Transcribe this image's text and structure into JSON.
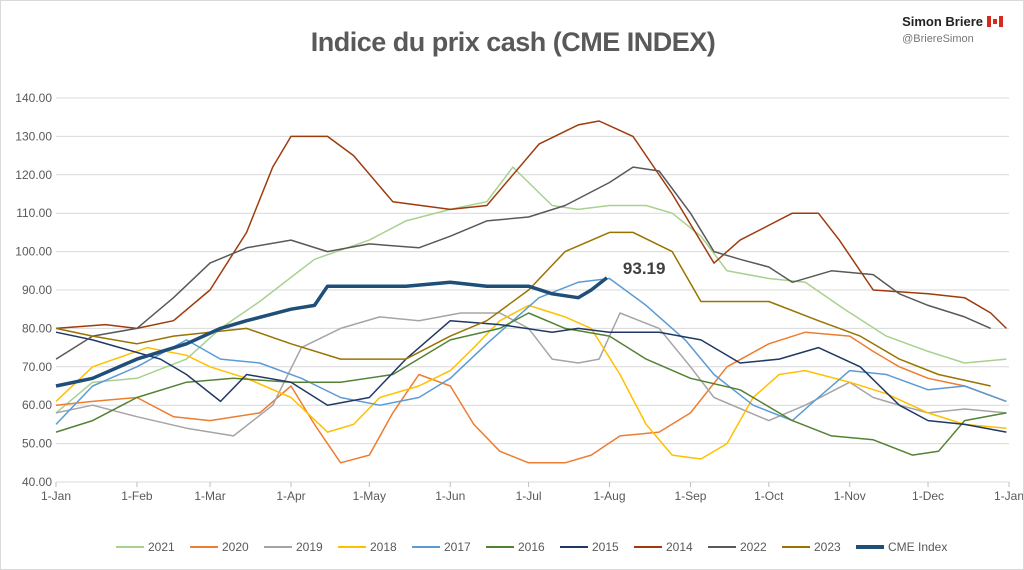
{
  "brand": {
    "name": "Simon Briere",
    "handle": "@BriereSimon",
    "flag_icon": "canada-flag-icon"
  },
  "chart_data": {
    "type": "line",
    "title": "Indice du prix cash (CME INDEX)",
    "xlabel": "",
    "ylabel": "",
    "ylim": [
      40,
      140
    ],
    "yticks": [
      "40.00",
      "50.00",
      "60.00",
      "70.00",
      "80.00",
      "90.00",
      "100.00",
      "110.00",
      "120.00",
      "130.00",
      "140.00"
    ],
    "xticks": [
      "1-Jan",
      "1-Feb",
      "1-Mar",
      "1-Apr",
      "1-May",
      "1-Jun",
      "1-Jul",
      "1-Aug",
      "1-Sep",
      "1-Oct",
      "1-Nov",
      "1-Dec",
      "1-Jan"
    ],
    "grid": "horizontal",
    "legend_position": "bottom",
    "annotation": "93.19",
    "series": [
      {
        "name": "2021",
        "color": "#A9D18E",
        "width": 1.5,
        "points": [
          [
            "01-01",
            58
          ],
          [
            "01-15",
            66
          ],
          [
            "02-01",
            67
          ],
          [
            "02-20",
            72
          ],
          [
            "03-05",
            80
          ],
          [
            "03-20",
            87
          ],
          [
            "04-10",
            98
          ],
          [
            "05-01",
            103
          ],
          [
            "05-15",
            108
          ],
          [
            "06-01",
            111
          ],
          [
            "06-15",
            113
          ],
          [
            "06-25",
            122
          ],
          [
            "07-10",
            112
          ],
          [
            "07-20",
            111
          ],
          [
            "08-01",
            112
          ],
          [
            "08-15",
            112
          ],
          [
            "08-25",
            110
          ],
          [
            "09-05",
            104
          ],
          [
            "09-15",
            95
          ],
          [
            "10-01",
            93
          ],
          [
            "10-15",
            92
          ],
          [
            "10-30",
            85
          ],
          [
            "11-15",
            78
          ],
          [
            "12-01",
            74
          ],
          [
            "12-15",
            71
          ],
          [
            "12-31",
            72
          ]
        ]
      },
      {
        "name": "2020",
        "color": "#ED7D31",
        "width": 1.5,
        "points": [
          [
            "01-01",
            60
          ],
          [
            "01-15",
            61
          ],
          [
            "02-01",
            62
          ],
          [
            "02-15",
            57
          ],
          [
            "03-01",
            56
          ],
          [
            "03-20",
            58
          ],
          [
            "04-01",
            65
          ],
          [
            "04-10",
            55
          ],
          [
            "04-20",
            45
          ],
          [
            "05-01",
            47
          ],
          [
            "05-10",
            58
          ],
          [
            "05-20",
            68
          ],
          [
            "06-01",
            65
          ],
          [
            "06-10",
            55
          ],
          [
            "06-20",
            48
          ],
          [
            "07-01",
            45
          ],
          [
            "07-15",
            45
          ],
          [
            "07-25",
            47
          ],
          [
            "08-05",
            52
          ],
          [
            "08-20",
            53
          ],
          [
            "09-01",
            58
          ],
          [
            "09-15",
            70
          ],
          [
            "10-01",
            76
          ],
          [
            "10-15",
            79
          ],
          [
            "11-01",
            78
          ],
          [
            "11-10",
            74
          ],
          [
            "11-20",
            70
          ],
          [
            "12-01",
            67
          ],
          [
            "12-15",
            65
          ],
          [
            "12-31",
            61
          ]
        ]
      },
      {
        "name": "2019",
        "color": "#A5A5A5",
        "width": 1.5,
        "points": [
          [
            "01-01",
            58
          ],
          [
            "01-15",
            60
          ],
          [
            "02-01",
            57
          ],
          [
            "02-20",
            54
          ],
          [
            "03-10",
            52
          ],
          [
            "03-25",
            60
          ],
          [
            "04-05",
            75
          ],
          [
            "04-20",
            80
          ],
          [
            "05-05",
            83
          ],
          [
            "05-20",
            82
          ],
          [
            "06-05",
            84
          ],
          [
            "06-20",
            84
          ],
          [
            "07-01",
            80
          ],
          [
            "07-10",
            72
          ],
          [
            "07-20",
            71
          ],
          [
            "07-28",
            72
          ],
          [
            "08-05",
            84
          ],
          [
            "08-20",
            80
          ],
          [
            "09-01",
            70
          ],
          [
            "09-10",
            62
          ],
          [
            "10-01",
            56
          ],
          [
            "10-15",
            60
          ],
          [
            "11-01",
            66
          ],
          [
            "11-10",
            62
          ],
          [
            "11-20",
            60
          ],
          [
            "12-01",
            58
          ],
          [
            "12-15",
            59
          ],
          [
            "12-31",
            58
          ]
        ]
      },
      {
        "name": "2018",
        "color": "#FFC000",
        "width": 1.5,
        "points": [
          [
            "01-01",
            61
          ],
          [
            "01-15",
            70
          ],
          [
            "02-05",
            75
          ],
          [
            "02-20",
            73
          ],
          [
            "03-01",
            70
          ],
          [
            "03-15",
            67
          ],
          [
            "04-01",
            62
          ],
          [
            "04-15",
            53
          ],
          [
            "04-25",
            55
          ],
          [
            "05-05",
            62
          ],
          [
            "05-20",
            65
          ],
          [
            "06-01",
            69
          ],
          [
            "06-10",
            75
          ],
          [
            "06-20",
            82
          ],
          [
            "07-01",
            86
          ],
          [
            "07-15",
            83
          ],
          [
            "07-25",
            80
          ],
          [
            "08-05",
            68
          ],
          [
            "08-15",
            55
          ],
          [
            "08-25",
            47
          ],
          [
            "09-05",
            46
          ],
          [
            "09-15",
            50
          ],
          [
            "09-25",
            62
          ],
          [
            "10-05",
            68
          ],
          [
            "10-15",
            69
          ],
          [
            "11-01",
            66
          ],
          [
            "11-15",
            63
          ],
          [
            "12-01",
            58
          ],
          [
            "12-15",
            55
          ],
          [
            "12-31",
            54
          ]
        ]
      },
      {
        "name": "2017",
        "color": "#5B9BD5",
        "width": 1.5,
        "points": [
          [
            "01-01",
            55
          ],
          [
            "01-15",
            65
          ],
          [
            "02-01",
            70
          ],
          [
            "02-20",
            77
          ],
          [
            "03-05",
            72
          ],
          [
            "03-20",
            71
          ],
          [
            "04-05",
            67
          ],
          [
            "04-20",
            62
          ],
          [
            "05-05",
            60
          ],
          [
            "05-20",
            62
          ],
          [
            "06-01",
            67
          ],
          [
            "06-15",
            76
          ],
          [
            "06-25",
            82
          ],
          [
            "07-05",
            88
          ],
          [
            "07-20",
            92
          ],
          [
            "08-01",
            93
          ],
          [
            "08-15",
            86
          ],
          [
            "08-30",
            77
          ],
          [
            "09-10",
            68
          ],
          [
            "09-25",
            60
          ],
          [
            "10-10",
            56
          ],
          [
            "10-20",
            62
          ],
          [
            "11-01",
            69
          ],
          [
            "11-15",
            68
          ],
          [
            "12-01",
            64
          ],
          [
            "12-15",
            65
          ],
          [
            "12-31",
            61
          ]
        ]
      },
      {
        "name": "2016",
        "color": "#548235",
        "width": 1.5,
        "points": [
          [
            "01-01",
            53
          ],
          [
            "01-15",
            56
          ],
          [
            "02-01",
            62
          ],
          [
            "02-20",
            66
          ],
          [
            "03-10",
            67
          ],
          [
            "04-01",
            66
          ],
          [
            "04-20",
            66
          ],
          [
            "05-10",
            68
          ],
          [
            "06-01",
            77
          ],
          [
            "06-20",
            80
          ],
          [
            "07-01",
            84
          ],
          [
            "07-15",
            80
          ],
          [
            "08-01",
            78
          ],
          [
            "08-15",
            72
          ],
          [
            "09-01",
            67
          ],
          [
            "09-20",
            64
          ],
          [
            "10-10",
            56
          ],
          [
            "10-25",
            52
          ],
          [
            "11-10",
            51
          ],
          [
            "11-25",
            47
          ],
          [
            "12-05",
            48
          ],
          [
            "12-15",
            56
          ],
          [
            "12-31",
            58
          ]
        ]
      },
      {
        "name": "2015",
        "color": "#203864",
        "width": 1.5,
        "points": [
          [
            "01-01",
            79
          ],
          [
            "01-15",
            77
          ],
          [
            "02-10",
            72
          ],
          [
            "02-20",
            68
          ],
          [
            "03-05",
            61
          ],
          [
            "03-15",
            68
          ],
          [
            "04-01",
            66
          ],
          [
            "04-15",
            60
          ],
          [
            "05-01",
            62
          ],
          [
            "05-15",
            72
          ],
          [
            "06-01",
            82
          ],
          [
            "06-20",
            81
          ],
          [
            "07-10",
            79
          ],
          [
            "07-20",
            80
          ],
          [
            "08-01",
            79
          ],
          [
            "08-20",
            79
          ],
          [
            "09-05",
            77
          ],
          [
            "09-20",
            71
          ],
          [
            "10-05",
            72
          ],
          [
            "10-20",
            75
          ],
          [
            "11-05",
            70
          ],
          [
            "11-20",
            60
          ],
          [
            "12-01",
            56
          ],
          [
            "12-15",
            55
          ],
          [
            "12-31",
            53
          ]
        ]
      },
      {
        "name": "2014",
        "color": "#9E3B0D",
        "width": 1.5,
        "points": [
          [
            "01-01",
            80
          ],
          [
            "01-20",
            81
          ],
          [
            "02-01",
            80
          ],
          [
            "02-15",
            82
          ],
          [
            "03-01",
            90
          ],
          [
            "03-15",
            105
          ],
          [
            "03-25",
            122
          ],
          [
            "04-01",
            130
          ],
          [
            "04-15",
            130
          ],
          [
            "04-25",
            125
          ],
          [
            "05-10",
            113
          ],
          [
            "06-01",
            111
          ],
          [
            "06-15",
            112
          ],
          [
            "06-25",
            120
          ],
          [
            "07-05",
            128
          ],
          [
            "07-20",
            133
          ],
          [
            "07-28",
            134
          ],
          [
            "08-10",
            130
          ],
          [
            "08-25",
            115
          ],
          [
            "09-10",
            97
          ],
          [
            "09-20",
            103
          ],
          [
            "10-10",
            110
          ],
          [
            "10-20",
            110
          ],
          [
            "10-28",
            103
          ],
          [
            "11-10",
            90
          ],
          [
            "12-01",
            89
          ],
          [
            "12-15",
            88
          ],
          [
            "12-25",
            84
          ],
          [
            "12-31",
            80
          ]
        ]
      },
      {
        "name": "2022",
        "color": "#595959",
        "width": 1.5,
        "points": [
          [
            "01-01",
            72
          ],
          [
            "01-15",
            78
          ],
          [
            "02-01",
            80
          ],
          [
            "02-15",
            88
          ],
          [
            "03-01",
            97
          ],
          [
            "03-15",
            101
          ],
          [
            "04-01",
            103
          ],
          [
            "04-15",
            100
          ],
          [
            "05-01",
            102
          ],
          [
            "05-20",
            101
          ],
          [
            "06-01",
            104
          ],
          [
            "06-15",
            108
          ],
          [
            "07-01",
            109
          ],
          [
            "07-15",
            112
          ],
          [
            "08-01",
            118
          ],
          [
            "08-10",
            122
          ],
          [
            "08-20",
            121
          ],
          [
            "09-01",
            110
          ],
          [
            "09-10",
            100
          ],
          [
            "09-20",
            98
          ],
          [
            "10-01",
            96
          ],
          [
            "10-10",
            92
          ],
          [
            "10-25",
            95
          ],
          [
            "11-10",
            94
          ],
          [
            "11-20",
            89
          ],
          [
            "12-01",
            86
          ],
          [
            "12-15",
            83
          ],
          [
            "12-25",
            80
          ]
        ]
      },
      {
        "name": "2023",
        "color": "#997300",
        "width": 1.5,
        "points": [
          [
            "01-01",
            80
          ],
          [
            "01-15",
            78
          ],
          [
            "02-01",
            76
          ],
          [
            "02-15",
            78
          ],
          [
            "03-15",
            80
          ],
          [
            "04-01",
            76
          ],
          [
            "04-20",
            72
          ],
          [
            "05-15",
            72
          ],
          [
            "06-01",
            78
          ],
          [
            "06-15",
            82
          ],
          [
            "07-01",
            90
          ],
          [
            "07-15",
            100
          ],
          [
            "08-01",
            105
          ],
          [
            "08-10",
            105
          ],
          [
            "08-25",
            100
          ],
          [
            "09-05",
            87
          ],
          [
            "09-20",
            87
          ],
          [
            "10-01",
            87
          ],
          [
            "10-20",
            82
          ],
          [
            "11-05",
            78
          ],
          [
            "11-20",
            72
          ],
          [
            "12-05",
            68
          ],
          [
            "12-25",
            65
          ]
        ]
      },
      {
        "name": "CME Index",
        "color": "#1F4E79",
        "width": 3.5,
        "points": [
          [
            "01-01",
            65
          ],
          [
            "01-15",
            67
          ],
          [
            "02-01",
            72
          ],
          [
            "02-20",
            76
          ],
          [
            "03-05",
            80
          ],
          [
            "03-15",
            82
          ],
          [
            "04-01",
            85
          ],
          [
            "04-10",
            86
          ],
          [
            "04-15",
            91
          ],
          [
            "05-01",
            91
          ],
          [
            "05-15",
            91
          ],
          [
            "06-01",
            92
          ],
          [
            "06-15",
            91
          ],
          [
            "07-01",
            91
          ],
          [
            "07-10",
            89
          ],
          [
            "07-20",
            88
          ],
          [
            "07-25",
            90
          ],
          [
            "07-31",
            93.19
          ]
        ]
      }
    ]
  }
}
